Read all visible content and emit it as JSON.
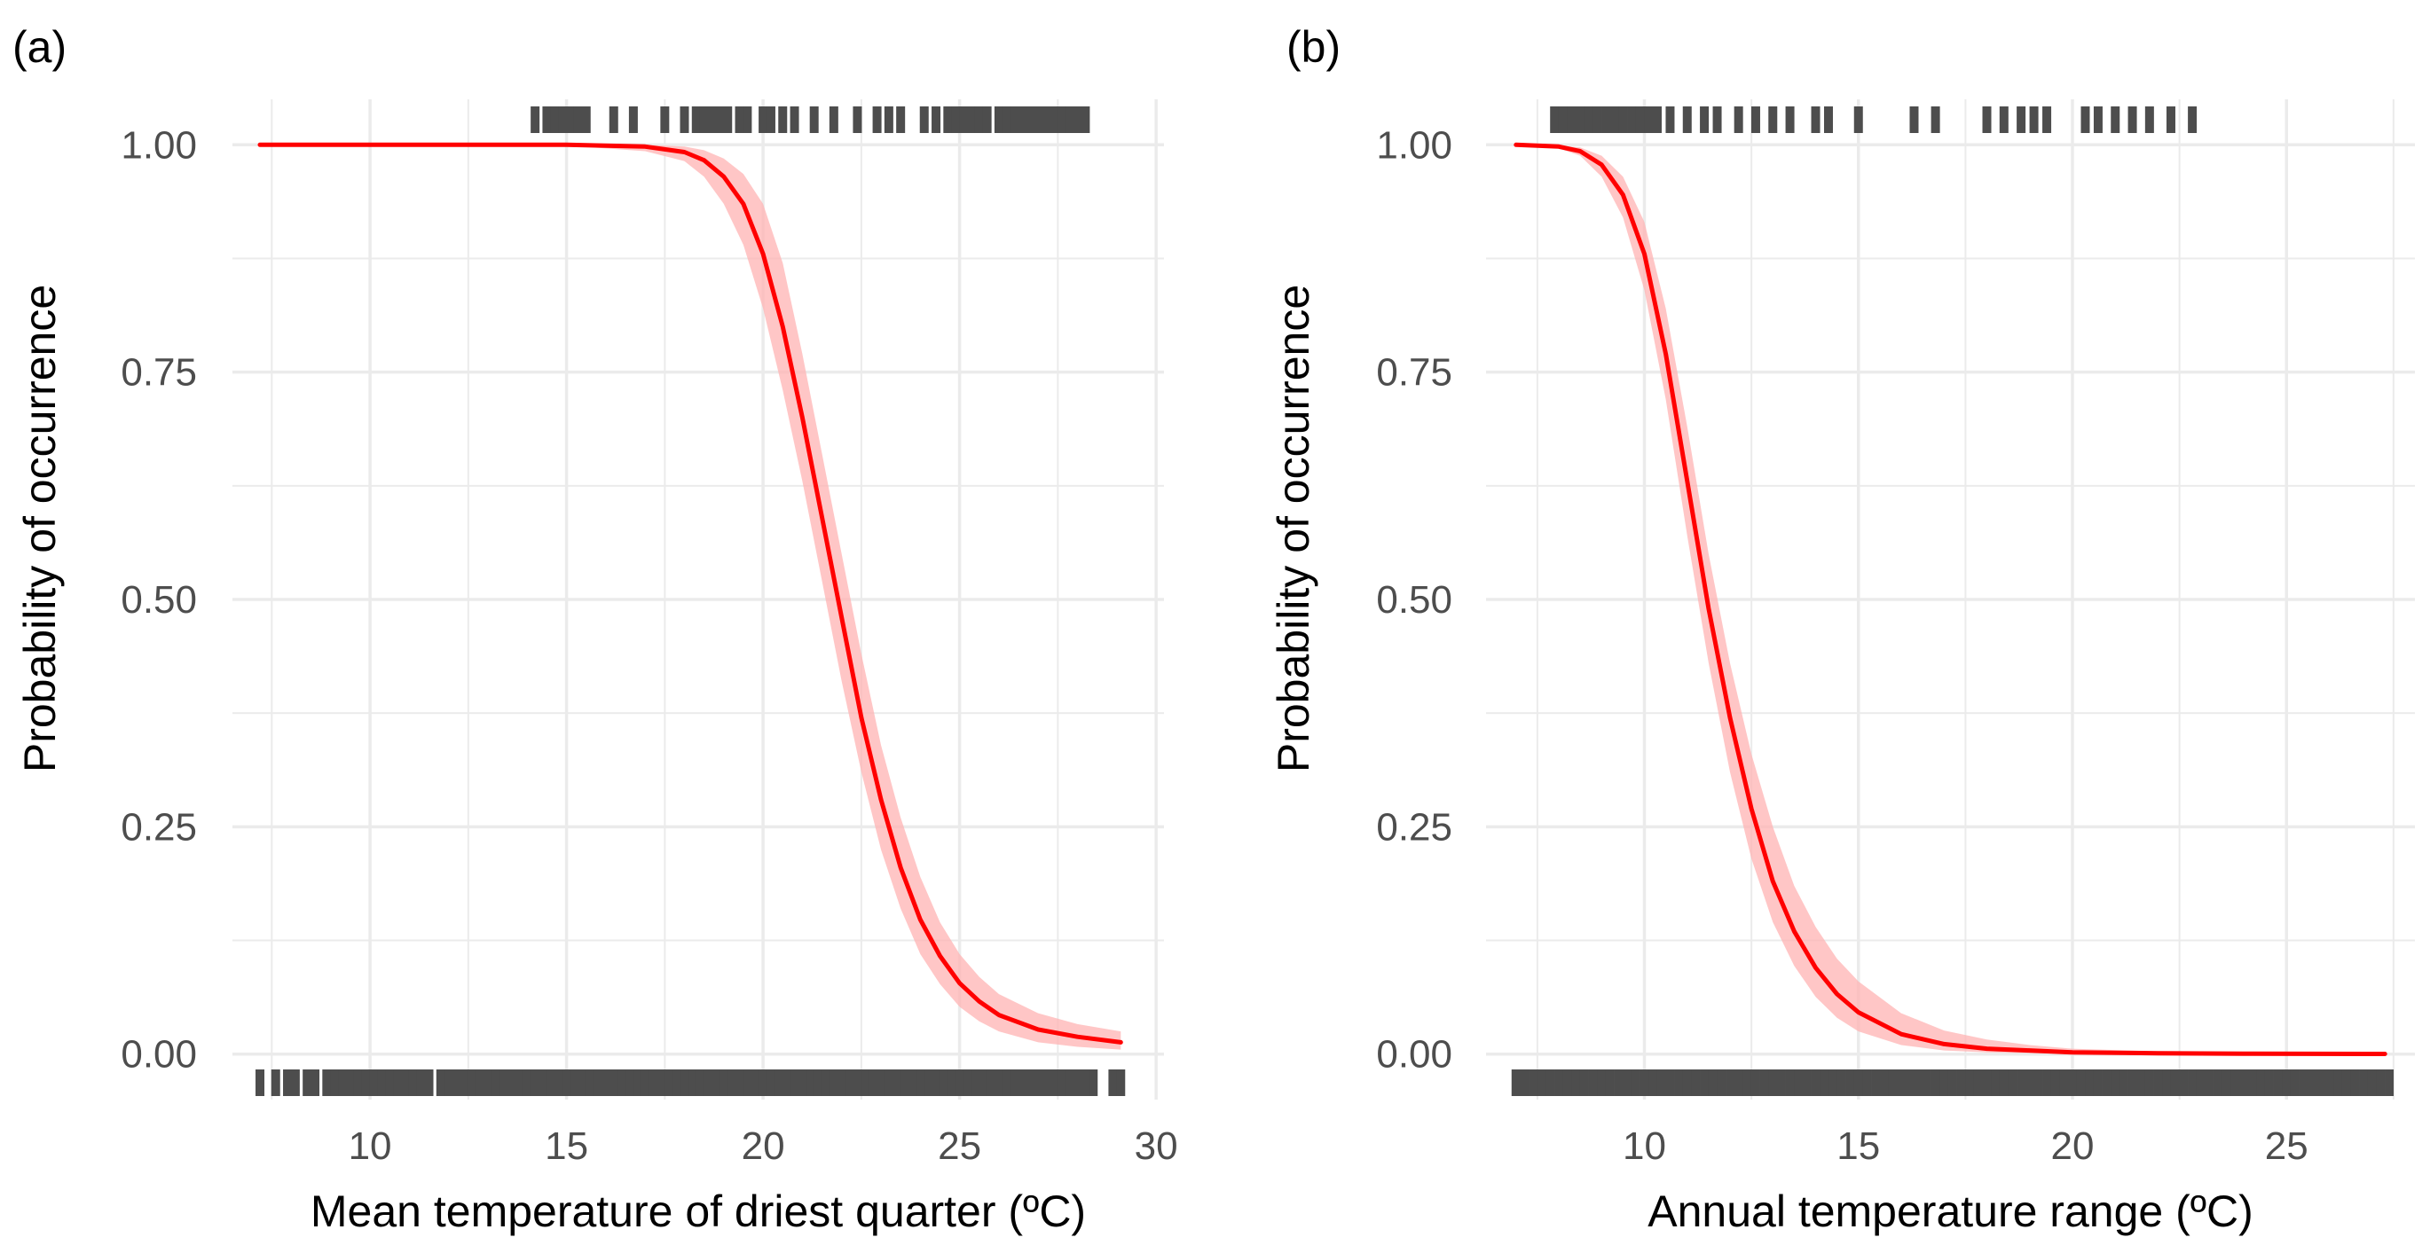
{
  "figure": {
    "panels": [
      "(a)",
      "(b)"
    ]
  },
  "colors": {
    "curve": "#ff0000",
    "ribbon": "#ffb3b3",
    "rug": "#4d4d4d",
    "grid": "#ebebeb",
    "text": "#4d4d4d"
  },
  "chart_data": [
    {
      "type": "line",
      "panel_label": "(a)",
      "title": "",
      "xlabel": "Mean temperature of driest quarter (ºC)",
      "ylabel": "Probability of occurrence",
      "xlim": [
        6.5,
        30.2
      ],
      "ylim": [
        -0.05,
        1.05
      ],
      "x_ticks": [
        10,
        15,
        20,
        25,
        30
      ],
      "x_tick_labels": [
        "10",
        "15",
        "20",
        "25",
        "30"
      ],
      "y_ticks": [
        0,
        0.25,
        0.5,
        0.75,
        1
      ],
      "y_tick_labels": [
        "0.00",
        "0.25",
        "0.50",
        "0.75",
        "1.00"
      ],
      "grid": true,
      "series": [
        {
          "name": "fitted probability",
          "x": [
            7.2,
            15,
            17,
            18,
            18.5,
            19,
            19.5,
            20,
            20.5,
            21,
            21.5,
            22,
            22.5,
            23,
            23.5,
            24,
            24.5,
            25,
            25.5,
            26,
            27,
            28,
            29.1
          ],
          "y": [
            1.0,
            1.0,
            0.998,
            0.992,
            0.983,
            0.965,
            0.935,
            0.88,
            0.8,
            0.7,
            0.59,
            0.48,
            0.37,
            0.28,
            0.205,
            0.148,
            0.108,
            0.078,
            0.058,
            0.043,
            0.027,
            0.019,
            0.013
          ],
          "lower": [
            1.0,
            0.999,
            0.993,
            0.982,
            0.965,
            0.935,
            0.89,
            0.82,
            0.73,
            0.63,
            0.52,
            0.41,
            0.31,
            0.225,
            0.16,
            0.11,
            0.077,
            0.052,
            0.036,
            0.025,
            0.013,
            0.008,
            0.005
          ],
          "upper": [
            1.0,
            1.0,
            1.0,
            0.998,
            0.994,
            0.985,
            0.968,
            0.935,
            0.87,
            0.77,
            0.66,
            0.55,
            0.44,
            0.34,
            0.26,
            0.195,
            0.145,
            0.11,
            0.085,
            0.066,
            0.045,
            0.033,
            0.025
          ]
        }
      ],
      "rug_presence": [
        14.2,
        14.5,
        14.7,
        14.9,
        15.1,
        15.3,
        15.5,
        16.2,
        16.7,
        17.5,
        18.0,
        18.3,
        18.5,
        18.7,
        18.9,
        19.1,
        19.4,
        19.6,
        20.0,
        20.2,
        20.5,
        20.8,
        21.3,
        21.8,
        22.4,
        22.9,
        23.2,
        23.5,
        24.1,
        24.4,
        24.7,
        24.9,
        25.1,
        25.3,
        25.5,
        25.7,
        26.0,
        26.2,
        26.4,
        26.6,
        26.8,
        27.0,
        27.2,
        27.4,
        27.6,
        27.8,
        28.0,
        28.2
      ],
      "rug_absence": [
        7.2,
        7.6,
        7.9,
        8.1,
        8.4,
        8.6,
        8.9,
        9.1,
        9.3,
        9.5,
        9.7,
        9.9,
        10.1,
        10.3,
        10.5,
        10.7,
        10.9,
        11.1,
        11.3,
        11.5,
        11.8,
        12.0,
        12.2,
        12.4,
        12.6,
        12.8,
        13.0,
        13.2,
        13.4,
        13.6,
        13.8,
        14.0,
        14.2,
        14.4,
        14.6,
        14.8,
        15.0,
        15.2,
        15.4,
        15.6,
        15.8,
        16.0,
        16.2,
        16.4,
        16.6,
        16.8,
        17.0,
        17.2,
        17.4,
        17.6,
        17.8,
        18.0,
        18.2,
        18.4,
        18.6,
        18.8,
        19.0,
        19.2,
        19.4,
        19.6,
        19.8,
        20.0,
        20.2,
        20.4,
        20.6,
        20.8,
        21.0,
        21.2,
        21.4,
        21.6,
        21.8,
        22.0,
        22.2,
        22.4,
        22.6,
        22.8,
        23.0,
        23.2,
        23.4,
        23.6,
        23.8,
        24.0,
        24.2,
        24.4,
        24.6,
        24.8,
        25.0,
        25.2,
        25.4,
        25.6,
        25.8,
        26.0,
        26.2,
        26.4,
        26.6,
        26.8,
        27.0,
        27.2,
        27.4,
        27.6,
        27.8,
        28.0,
        28.2,
        28.4,
        28.9,
        29.1
      ]
    },
    {
      "type": "line",
      "panel_label": "(b)",
      "title": "",
      "xlabel": "Annual temperature range (ºC)",
      "ylabel": "Probability of occurrence",
      "xlim": [
        6.3,
        28.0
      ],
      "ylim": [
        -0.05,
        1.05
      ],
      "x_ticks": [
        10,
        15,
        20,
        25
      ],
      "x_tick_labels": [
        "10",
        "15",
        "20",
        "25"
      ],
      "y_ticks": [
        0,
        0.25,
        0.5,
        0.75,
        1
      ],
      "y_tick_labels": [
        "0.00",
        "0.25",
        "0.50",
        "0.75",
        "1.00"
      ],
      "grid": true,
      "series": [
        {
          "name": "fitted probability",
          "x": [
            7.0,
            8.0,
            8.5,
            9.0,
            9.5,
            10.0,
            10.5,
            11.0,
            11.5,
            12.0,
            12.5,
            13.0,
            13.5,
            14.0,
            14.5,
            15.0,
            16.0,
            17.0,
            18.0,
            19.0,
            20.0,
            22.0,
            24.0,
            27.3
          ],
          "y": [
            1.0,
            0.998,
            0.993,
            0.978,
            0.945,
            0.88,
            0.77,
            0.63,
            0.49,
            0.37,
            0.27,
            0.19,
            0.135,
            0.095,
            0.066,
            0.046,
            0.022,
            0.011,
            0.006,
            0.004,
            0.002,
            0.001,
            0.0005,
            0.0002
          ],
          "lower": [
            1.0,
            0.996,
            0.988,
            0.965,
            0.92,
            0.84,
            0.72,
            0.57,
            0.43,
            0.31,
            0.215,
            0.145,
            0.097,
            0.063,
            0.04,
            0.025,
            0.01,
            0.004,
            0.002,
            0.001,
            0.0005,
            0.0002,
            0.0001,
            0.0
          ],
          "upper": [
            1.0,
            0.999,
            0.997,
            0.988,
            0.965,
            0.915,
            0.82,
            0.69,
            0.55,
            0.43,
            0.33,
            0.25,
            0.185,
            0.14,
            0.105,
            0.08,
            0.045,
            0.026,
            0.016,
            0.01,
            0.006,
            0.003,
            0.0015,
            0.0008
          ]
        }
      ],
      "rug_presence": [
        7.9,
        8.1,
        8.3,
        8.5,
        8.7,
        8.9,
        9.1,
        9.3,
        9.5,
        9.7,
        9.9,
        10.1,
        10.3,
        10.6,
        11.0,
        11.4,
        11.7,
        12.2,
        12.6,
        13.0,
        13.4,
        14.0,
        14.3,
        15.0,
        16.3,
        16.8,
        18.0,
        18.4,
        18.8,
        19.1,
        19.4,
        20.3,
        20.6,
        21.0,
        21.4,
        21.8,
        22.3,
        22.8
      ],
      "rug_absence": [
        7.0,
        7.2,
        7.4,
        7.6,
        7.8,
        8.0,
        8.2,
        8.4,
        8.6,
        8.8,
        9.0,
        9.2,
        9.4,
        9.6,
        9.8,
        10.0,
        10.2,
        10.4,
        10.6,
        10.8,
        11.0,
        11.2,
        11.4,
        11.6,
        11.8,
        12.0,
        12.2,
        12.4,
        12.6,
        12.8,
        13.0,
        13.2,
        13.4,
        13.6,
        13.8,
        14.0,
        14.2,
        14.4,
        14.6,
        14.8,
        15.0,
        15.2,
        15.4,
        15.6,
        15.8,
        16.0,
        16.2,
        16.4,
        16.6,
        16.8,
        17.0,
        17.2,
        17.4,
        17.6,
        17.8,
        18.0,
        18.2,
        18.4,
        18.6,
        18.8,
        19.0,
        19.2,
        19.4,
        19.6,
        19.8,
        20.0,
        20.2,
        20.4,
        20.6,
        20.8,
        21.0,
        21.2,
        21.4,
        21.6,
        21.8,
        22.0,
        22.2,
        22.4,
        22.6,
        22.8,
        23.0,
        23.2,
        23.4,
        23.6,
        23.8,
        24.0,
        24.2,
        24.4,
        24.6,
        24.8,
        25.0,
        25.2,
        25.4,
        25.6,
        25.8,
        26.0,
        26.2,
        26.4,
        26.6,
        26.8,
        27.0,
        27.2,
        27.4
      ]
    }
  ]
}
